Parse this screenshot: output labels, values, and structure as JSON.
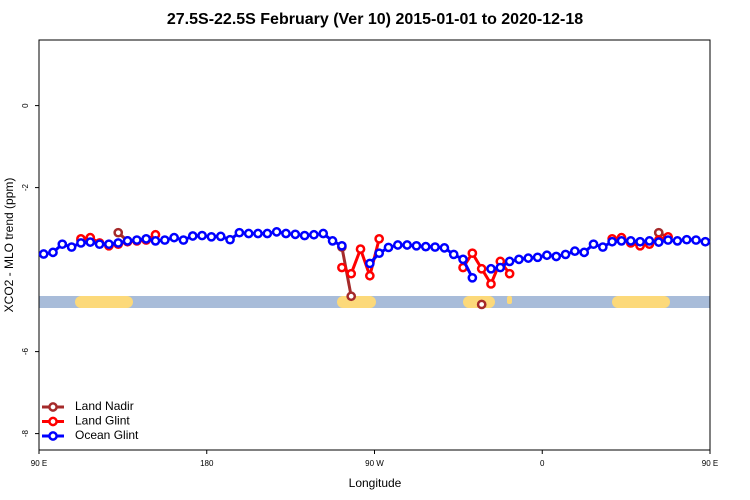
{
  "chart_data": {
    "type": "line",
    "title": "27.5S-22.5S February (Ver 10)   2015-01-01 to 2020-12-18",
    "xlabel": "Longitude",
    "ylabel": "XCO2 - MLO trend (ppm)",
    "xlim": [
      90,
      450
    ],
    "xticks": [
      {
        "value": 90,
        "label": "90 E"
      },
      180,
      {
        "value": 270,
        "label": "90 W"
      },
      {
        "value": 360,
        "label": "0"
      },
      {
        "value": 450,
        "label": "90 E"
      }
    ],
    "ylim": [
      -8.4,
      1.6
    ],
    "yticks": [
      -8,
      -6,
      -2,
      0
    ],
    "legend": "bottom-left",
    "x": [
      92.5,
      97.5,
      102.5,
      107.5,
      112.5,
      117.5,
      122.5,
      127.5,
      132.5,
      137.5,
      142.5,
      147.5,
      152.5,
      157.5,
      162.5,
      167.5,
      172.5,
      177.5,
      182.5,
      187.5,
      192.5,
      197.5,
      202.5,
      207.5,
      212.5,
      217.5,
      222.5,
      227.5,
      232.5,
      237.5,
      242.5,
      247.5,
      252.5,
      257.5,
      262.5,
      267.5,
      272.5,
      277.5,
      282.5,
      287.5,
      292.5,
      297.5,
      302.5,
      307.5,
      312.5,
      317.5,
      322.5,
      327.5,
      332.5,
      337.5,
      342.5,
      347.5,
      352.5,
      357.5,
      362.5,
      367.5,
      372.5,
      377.5,
      382.5,
      387.5,
      392.5,
      397.5,
      402.5,
      407.5,
      412.5,
      417.5,
      422.5,
      427.5,
      432.5,
      437.5,
      442.5,
      447.5
    ],
    "series": [
      {
        "name": "Land Nadir",
        "color": "#a52a2a",
        "values": [
          null,
          null,
          null,
          null,
          -3.28,
          -3.25,
          null,
          null,
          -3.1,
          -3.3,
          null,
          null,
          null,
          null,
          null,
          null,
          null,
          null,
          null,
          null,
          null,
          null,
          null,
          null,
          null,
          null,
          null,
          null,
          null,
          null,
          null,
          null,
          -3.45,
          -4.65,
          null,
          null,
          null,
          null,
          null,
          null,
          null,
          null,
          null,
          null,
          null,
          null,
          null,
          -4.85,
          null,
          null,
          null,
          null,
          null,
          null,
          null,
          null,
          null,
          null,
          null,
          null,
          null,
          null,
          -3.25,
          null,
          null,
          null,
          -3.1,
          -3.22,
          null,
          null,
          null,
          null
        ]
      },
      {
        "name": "Land Glint",
        "color": "#ff0000",
        "values": [
          null,
          null,
          null,
          null,
          -3.25,
          -3.22,
          -3.35,
          -3.42,
          -3.38,
          -3.32,
          -3.3,
          -3.28,
          -3.15,
          null,
          null,
          null,
          null,
          null,
          null,
          null,
          null,
          null,
          null,
          null,
          null,
          null,
          null,
          null,
          null,
          null,
          null,
          null,
          -3.95,
          -4.1,
          -3.5,
          -4.15,
          -3.25,
          null,
          null,
          null,
          null,
          null,
          null,
          null,
          null,
          -3.95,
          -3.6,
          -3.98,
          -4.35,
          -3.8,
          -4.1,
          null,
          null,
          null,
          null,
          null,
          null,
          null,
          null,
          null,
          null,
          -3.25,
          -3.22,
          -3.35,
          -3.42,
          -3.38,
          -3.28,
          -3.2,
          null,
          null,
          null,
          null
        ]
      },
      {
        "name": "Ocean Glint",
        "color": "#0000ff",
        "values": [
          -3.62,
          -3.58,
          -3.38,
          -3.45,
          -3.35,
          -3.33,
          -3.38,
          -3.38,
          -3.35,
          -3.3,
          -3.28,
          -3.25,
          -3.3,
          -3.28,
          -3.22,
          -3.28,
          -3.18,
          -3.17,
          -3.2,
          -3.19,
          -3.27,
          -3.1,
          -3.12,
          -3.12,
          -3.12,
          -3.08,
          -3.12,
          -3.14,
          -3.17,
          -3.15,
          -3.12,
          -3.3,
          -3.42,
          null,
          null,
          -3.85,
          -3.6,
          -3.46,
          -3.4,
          -3.4,
          -3.42,
          -3.44,
          -3.45,
          -3.47,
          -3.63,
          -3.75,
          -4.2,
          null,
          -3.98,
          -3.95,
          -3.8,
          -3.75,
          -3.72,
          -3.7,
          -3.65,
          -3.68,
          -3.63,
          -3.55,
          -3.58,
          -3.38,
          -3.45,
          -3.32,
          -3.3,
          -3.3,
          -3.32,
          -3.3,
          -3.33,
          -3.28,
          -3.3,
          -3.27,
          -3.28,
          -3.32
        ]
      }
    ]
  }
}
